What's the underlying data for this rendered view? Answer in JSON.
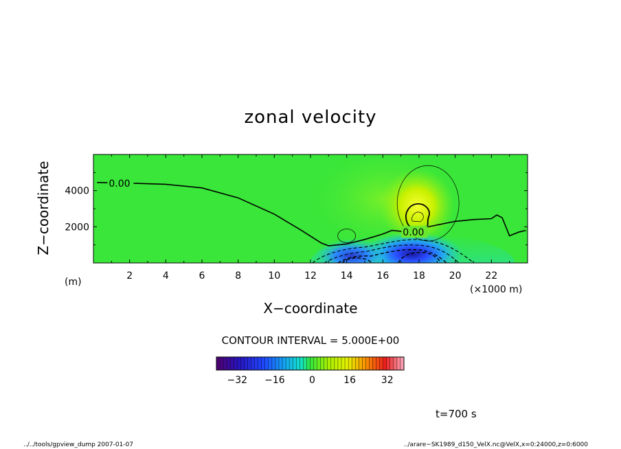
{
  "chart_data": {
    "type": "heatmap",
    "title": "zonal velocity",
    "xlabel": "X−coordinate",
    "ylabel": "Z−coordinate",
    "x_unit": "(×1000 m)",
    "y_unit": "(m)",
    "xlim": [
      0,
      24
    ],
    "ylim": [
      0,
      6000
    ],
    "xticks": [
      2,
      4,
      6,
      8,
      10,
      12,
      14,
      16,
      18,
      20,
      22
    ],
    "xtick_labels": [
      "2",
      "4",
      "6",
      "8",
      "10",
      "12",
      "14",
      "16",
      "18",
      "20",
      "22"
    ],
    "yticks": [
      2000,
      4000
    ],
    "ytick_labels": [
      "2000",
      "4000"
    ],
    "contour_interval_text": "CONTOUR INTERVAL = 5.000E+00",
    "contour_labels": [
      "0.00",
      "0.00"
    ],
    "zero_contour": [
      [
        0.2,
        4450
      ],
      [
        2.4,
        4400
      ],
      [
        4,
        4350
      ],
      [
        6,
        4150
      ],
      [
        8,
        3600
      ],
      [
        10,
        2700
      ],
      [
        11.5,
        1800
      ],
      [
        12.6,
        1100
      ],
      [
        13,
        950
      ],
      [
        13.5,
        1000
      ],
      [
        14,
        1050
      ],
      [
        15,
        1300
      ],
      [
        16,
        1600
      ],
      [
        16.5,
        1800
      ],
      [
        17,
        1750
      ],
      [
        18,
        1900
      ],
      [
        19,
        2100
      ],
      [
        20,
        2300
      ],
      [
        21,
        2400
      ],
      [
        22,
        2450
      ],
      [
        22.3,
        2650
      ],
      [
        22.6,
        2500
      ],
      [
        23,
        1500
      ],
      [
        23.5,
        1700
      ],
      [
        23.9,
        1800
      ]
    ],
    "colorbar": {
      "ticks": [
        -32,
        -16,
        0,
        16,
        32
      ],
      "tick_labels": [
        "−32",
        "−16",
        "0",
        "16",
        "32"
      ],
      "range": [
        -40,
        40
      ]
    },
    "colors": {
      "background_field": "#39e639",
      "strong_negative": "#1818a0",
      "negative": "#2a7bff",
      "weak_negative": "#22d8d0",
      "positive": "#c8f000",
      "strong_positive": "#f8ff30"
    }
  },
  "time_label": "t=700 s",
  "footer": {
    "left": "../../tools/gpview_dump  2007-01-07",
    "right": "../arare−SK1989_d150_VelX.nc@VelX,x=0:24000,z=0:6000"
  }
}
